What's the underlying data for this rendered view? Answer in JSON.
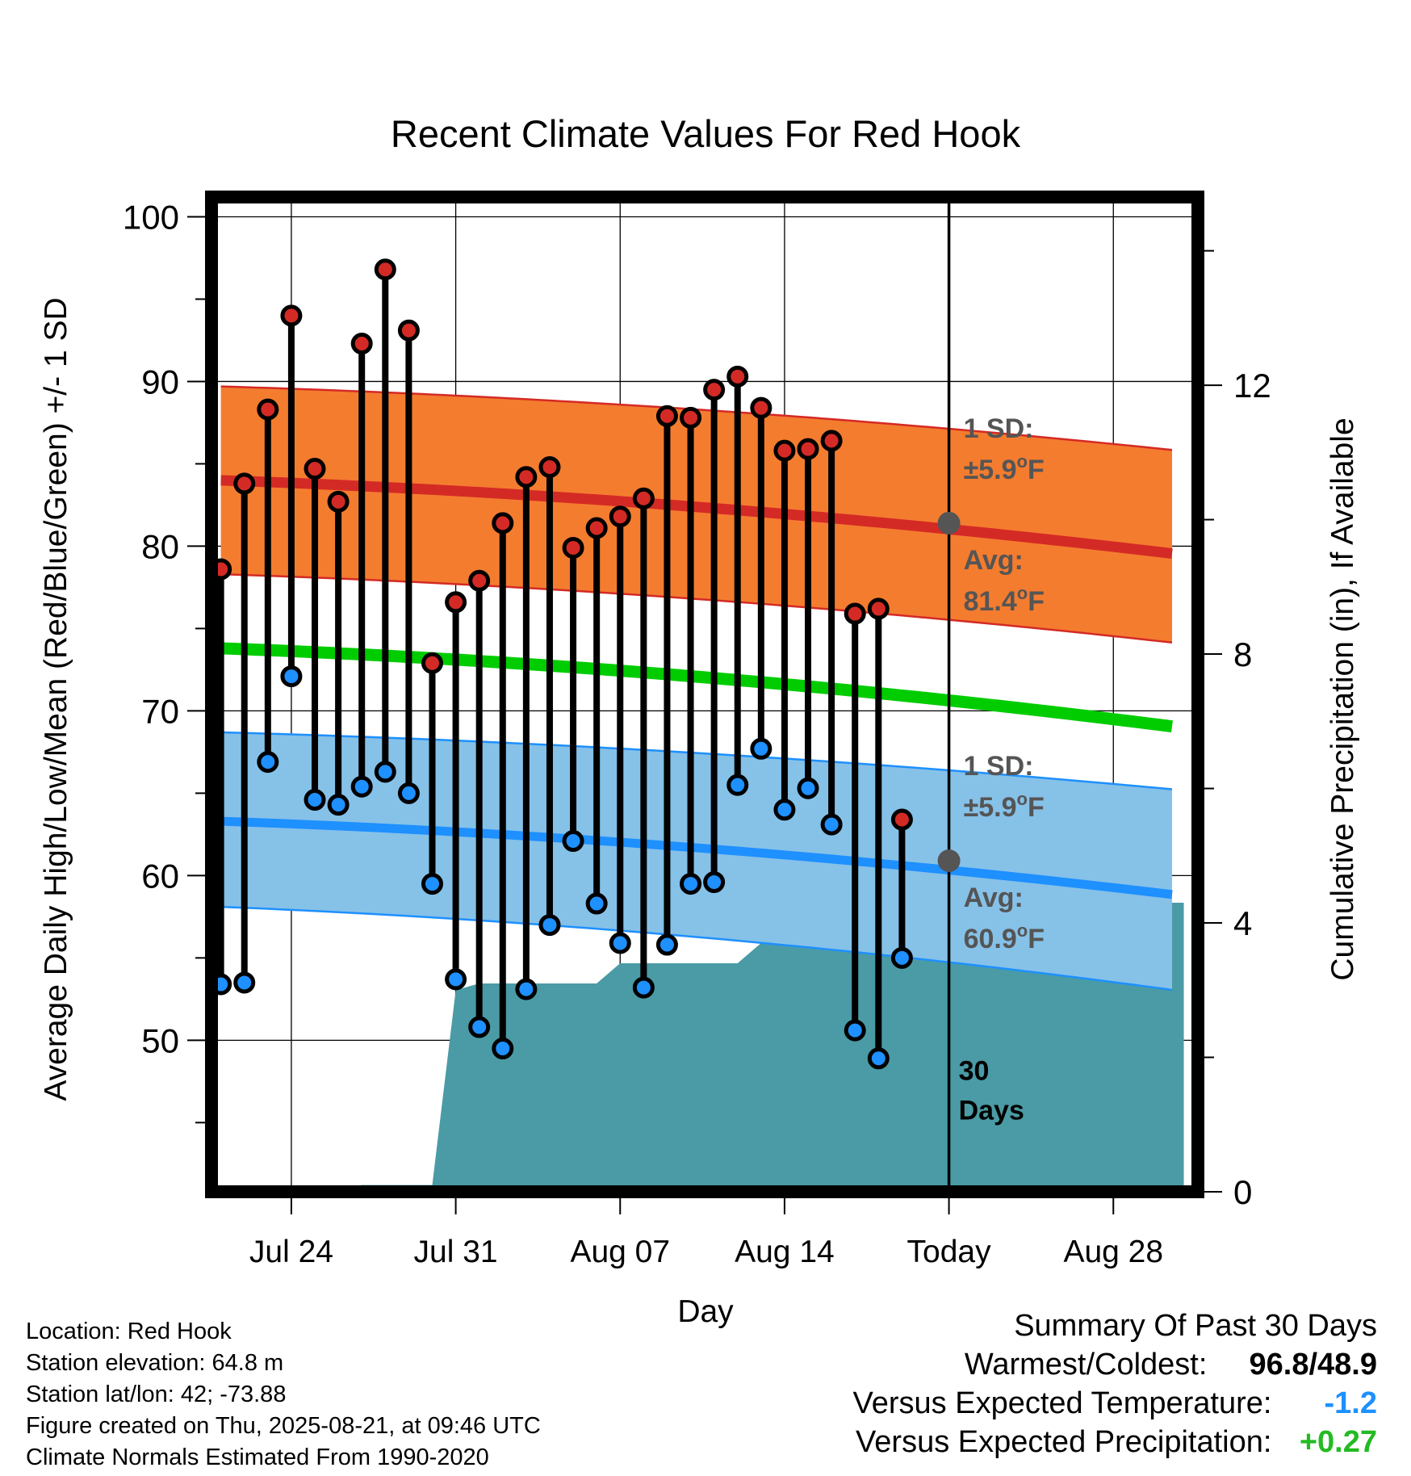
{
  "chart_data": {
    "type": "line",
    "title": "Recent Climate Values For Red Hook",
    "xlabel": "Day",
    "ylabel": "Average Daily High/Low/Mean (Red/Blue/Green) +/- 1 SD",
    "y2label": "Cumulative Precipitation (in), If Available",
    "ylim": [
      40.8,
      101.2
    ],
    "y_ticks": [
      50,
      60,
      70,
      80,
      90,
      100
    ],
    "y2lim": [
      0,
      14.8
    ],
    "y2_ticks": [
      0,
      4,
      8,
      12
    ],
    "x_ticks": [
      {
        "day": 3,
        "label": "Jul 24"
      },
      {
        "day": 10,
        "label": "Jul 31"
      },
      {
        "day": 17,
        "label": "Aug 07"
      },
      {
        "day": 24,
        "label": "Aug 14"
      },
      {
        "day": 31,
        "label": "Today"
      },
      {
        "day": 38,
        "label": "Aug 28"
      }
    ],
    "xlim": [
      -0.4,
      41.6
    ],
    "today_day": 31,
    "grid": true,
    "normals": {
      "high_mean": {
        "start": 84.0,
        "end": 79.5
      },
      "high_upper": {
        "start": 89.7,
        "end": 85.8
      },
      "high_lower": {
        "start": 78.3,
        "end": 74.1
      },
      "mean": {
        "start": 73.8,
        "end": 69.0
      },
      "low_mean": {
        "start": 63.3,
        "end": 58.8
      },
      "low_upper": {
        "start": 68.7,
        "end": 65.2
      },
      "low_lower": {
        "start": 58.1,
        "end": 53.0
      }
    },
    "daily": {
      "highs": [
        78.6,
        83.8,
        88.3,
        94.0,
        84.7,
        82.7,
        92.3,
        96.8,
        93.1,
        72.9,
        76.6,
        77.9,
        81.4,
        84.2,
        84.8,
        79.9,
        81.1,
        81.8,
        82.9,
        87.9,
        87.8,
        89.5,
        90.3,
        88.4,
        85.8,
        85.9,
        86.4,
        75.9,
        76.2,
        63.4
      ],
      "lows": [
        53.4,
        53.5,
        66.9,
        72.1,
        64.6,
        64.3,
        65.4,
        66.3,
        65.0,
        59.5,
        53.7,
        50.8,
        49.5,
        53.1,
        57.0,
        62.1,
        58.3,
        55.9,
        53.2,
        55.8,
        59.5,
        59.6,
        65.5,
        67.7,
        64.0,
        65.3,
        63.1,
        50.6,
        48.9,
        55.0
      ]
    },
    "precip_cumulative": [
      {
        "day": 0,
        "value": 0
      },
      {
        "day": 5,
        "value": 0
      },
      {
        "day": 6,
        "value": 0.1
      },
      {
        "day": 9,
        "value": 0.1
      },
      {
        "day": 10,
        "value": 3.0
      },
      {
        "day": 11,
        "value": 3.1
      },
      {
        "day": 15,
        "value": 3.1
      },
      {
        "day": 16,
        "value": 3.1
      },
      {
        "day": 17,
        "value": 3.4
      },
      {
        "day": 21,
        "value": 3.4
      },
      {
        "day": 22,
        "value": 3.4
      },
      {
        "day": 23,
        "value": 3.7
      },
      {
        "day": 28,
        "value": 3.7
      },
      {
        "day": 29,
        "value": 3.7
      },
      {
        "day": 30,
        "value": 4.3
      },
      {
        "day": 41,
        "value": 4.3
      }
    ],
    "annotations": {
      "high_sd_label": "1 SD:",
      "high_sd_value": "±5.9",
      "high_avg_label": "Avg:",
      "high_avg_value": "81.4",
      "low_sd_label": "1 SD:",
      "low_sd_value": "±5.9",
      "low_avg_label": "Avg:",
      "low_avg_value": "60.9",
      "unit_symbol": "o",
      "unit_letter": "F",
      "days_number": "30",
      "days_word": "Days"
    },
    "colors": {
      "high_band": "#f47c2f",
      "high_line": "#d42a25",
      "mean_line": "#00cc00",
      "low_band": "#86c1e8",
      "low_line": "#1e90ff",
      "precip": "#4a9ba5",
      "high_dot": "#d42a25",
      "low_dot": "#1e90ff",
      "annotation": "#555555"
    }
  },
  "meta": {
    "location": "Location: Red Hook",
    "elevation": "Station elevation: 64.8 m",
    "latlon": "Station lat/lon: 42; -73.88",
    "created": "Figure created on Thu, 2025-08-21, at 09:46 UTC",
    "normals": "Climate Normals Estimated From 1990-2020"
  },
  "summary": {
    "title": "Summary Of Past 30 Days",
    "warm_cold_label": "Warmest/Coldest:",
    "warm_cold_value": "96.8/48.9",
    "temp_label": "Versus Expected Temperature:",
    "temp_value": "-1.2",
    "temp_color": "#1e90ff",
    "precip_label": "Versus Expected Precipitation:",
    "precip_value": "+0.27",
    "precip_color": "#22bb22"
  }
}
